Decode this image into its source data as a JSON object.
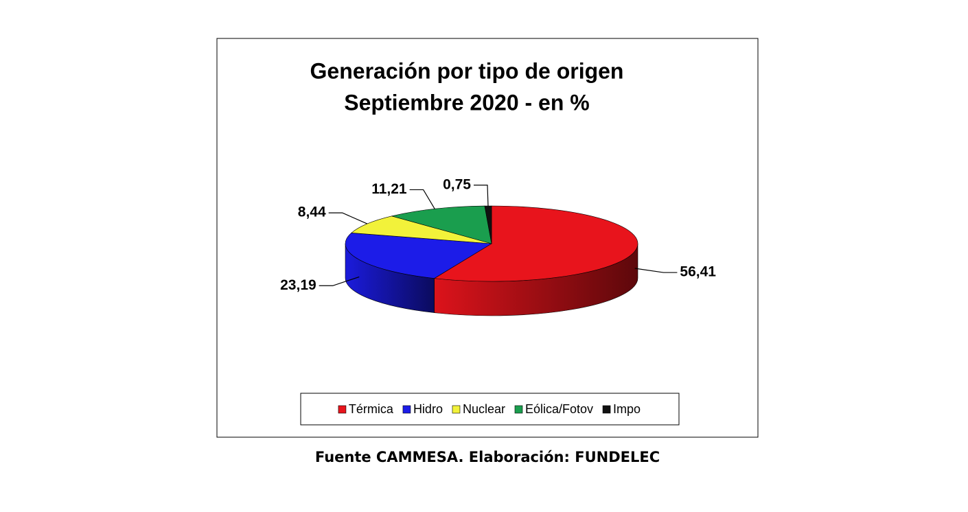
{
  "chart_data": {
    "type": "pie3d",
    "title": "Generación por tipo de origen",
    "subtitle": "Septiembre 2020 - en %",
    "categories": [
      "Térmica",
      "Hidro",
      "Nuclear",
      "Eólica/Fotov",
      "Impo"
    ],
    "values": [
      56.41,
      23.19,
      8.44,
      11.21,
      0.75
    ],
    "value_labels": [
      "56,41",
      "23,19",
      "8,44",
      "11,21",
      "0,75"
    ],
    "colors": [
      "#e8141c",
      "#1c1ce8",
      "#f2f23a",
      "#1a9e4e",
      "#111111"
    ],
    "legend": "bottom",
    "source": "Fuente CAMMESA. Elaboración: FUNDELEC"
  }
}
